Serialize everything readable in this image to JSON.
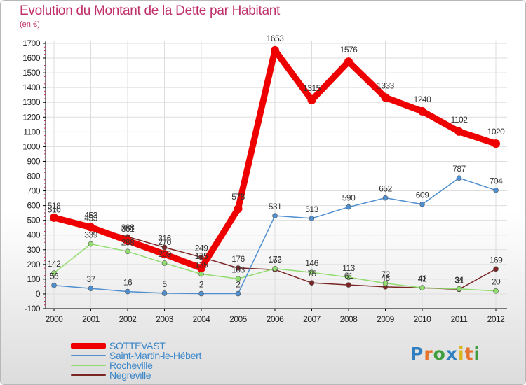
{
  "title": "Evolution du Montant de la Dette par Habitant",
  "subtitle": "(en €)",
  "logo": [
    "P",
    "r",
    "o",
    "x",
    "i",
    "t",
    "i"
  ],
  "chart_data": {
    "type": "line",
    "ylim": [
      -100,
      1700
    ],
    "yticks": [
      -100,
      0,
      100,
      200,
      300,
      400,
      500,
      600,
      700,
      800,
      900,
      1000,
      1100,
      1200,
      1300,
      1400,
      1500,
      1600,
      1700
    ],
    "categories": [
      "2000",
      "2001",
      "2002",
      "2003",
      "2004",
      "2005",
      "2006",
      "2007",
      "2008",
      "2009",
      "2010",
      "2011",
      "2012"
    ],
    "grid": true,
    "legend": "bottom-left",
    "series": [
      {
        "name": "SOTTEVAST",
        "color": "#ee0000",
        "values": [
          518,
          453,
          361,
          270,
          175,
          578,
          1653,
          1315,
          1576,
          1333,
          1240,
          1102,
          1020
        ]
      },
      {
        "name": "Saint-Martin-le-Hébert",
        "color": "#4f8fcf",
        "values": [
          58,
          37,
          16,
          5,
          2,
          2,
          531,
          513,
          590,
          652,
          609,
          787,
          704
        ]
      },
      {
        "name": "Rocheville",
        "color": "#90dc6e",
        "values": [
          142,
          339,
          288,
          209,
          135,
          103,
          172,
          146,
          113,
          72,
          42,
          34,
          20
        ]
      },
      {
        "name": "Négreville",
        "color": "#7b2525",
        "values": [
          510,
          453,
          388,
          316,
          249,
          176,
          165,
          75,
          61,
          48,
          41,
          31,
          169
        ]
      }
    ]
  }
}
